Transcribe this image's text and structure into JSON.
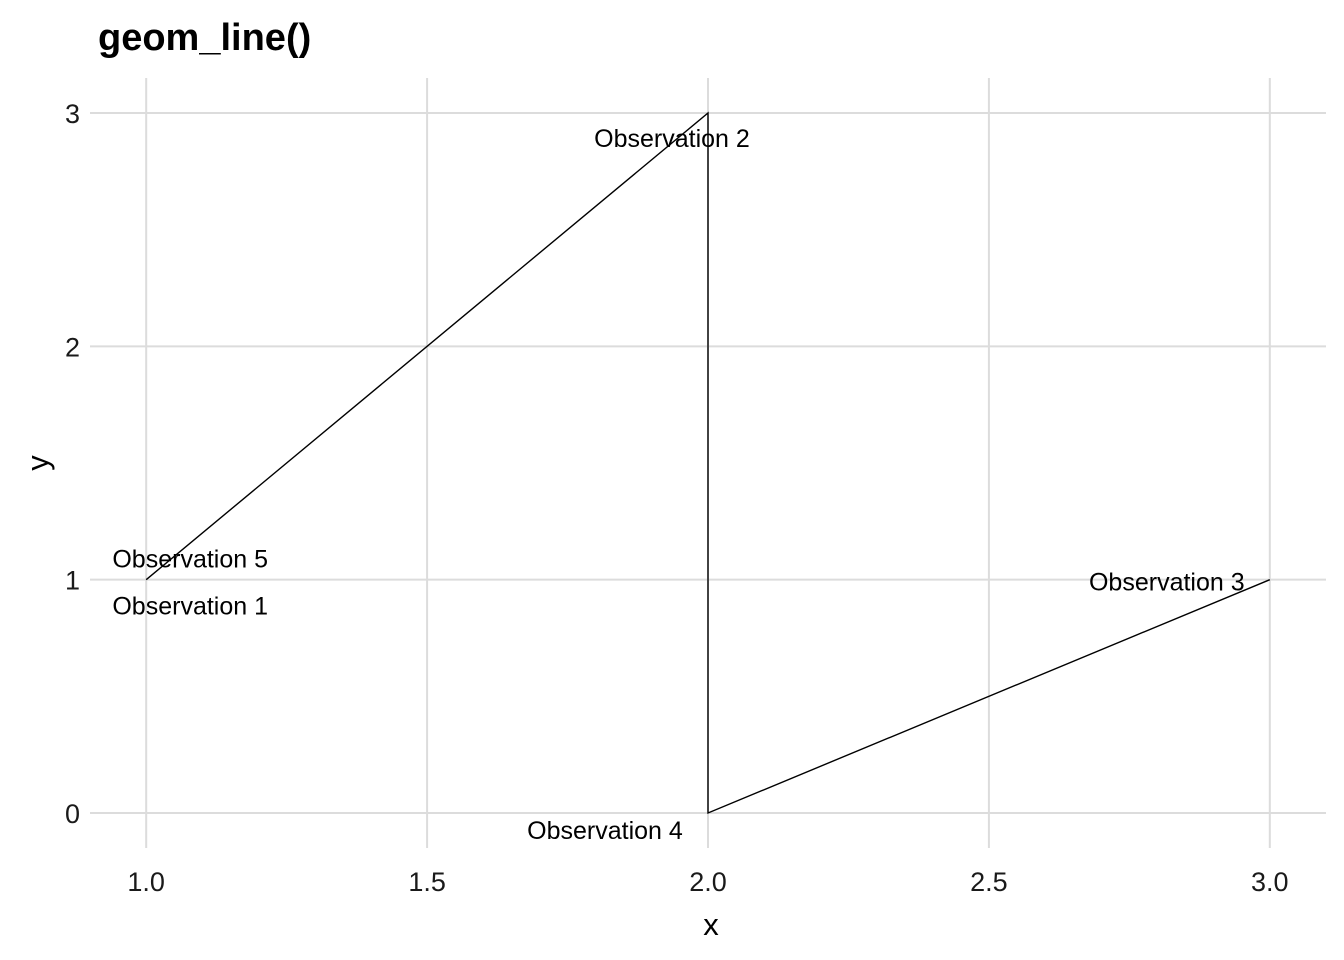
{
  "chart_data": {
    "type": "line",
    "title": "geom_line()",
    "xlabel": "x",
    "ylabel": "y",
    "xlim": [
      0.9,
      3.1
    ],
    "ylim": [
      -0.15,
      3.15
    ],
    "x_ticks": [
      1.0,
      1.5,
      2.0,
      2.5,
      3.0
    ],
    "x_tick_labels": [
      "1.0",
      "1.5",
      "2.0",
      "2.5",
      "3.0"
    ],
    "y_ticks": [
      0,
      1,
      2,
      3
    ],
    "y_tick_labels": [
      "0",
      "1",
      "2",
      "3"
    ],
    "grid": true,
    "legend": "none",
    "line_color": "#000000",
    "grid_color": "#dcdcdc",
    "points": [
      {
        "x": 1,
        "y": 1,
        "label": "Observation 1"
      },
      {
        "x": 2,
        "y": 3,
        "label": "Observation 2"
      },
      {
        "x": 3,
        "y": 1,
        "label": "Observation 3"
      },
      {
        "x": 2,
        "y": 0,
        "label": "Observation 4"
      },
      {
        "x": 1,
        "y": 1,
        "label": "Observation 5"
      }
    ],
    "line_order": [
      1,
      5,
      2,
      4,
      3
    ]
  }
}
